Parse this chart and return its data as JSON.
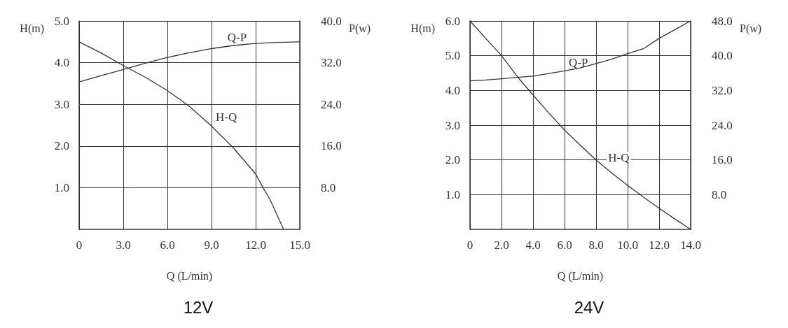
{
  "chart_data": [
    {
      "type": "line",
      "title": "12V",
      "xlabel": "Q (L/min)",
      "ylabel": "H(m)",
      "y2label": "P(w)",
      "xlim": [
        0,
        15
      ],
      "xticks": [
        0,
        {
          "value": 3,
          "label": "3.0"
        },
        {
          "value": 6,
          "label": "6.0"
        },
        {
          "value": 9,
          "label": "9.0"
        },
        {
          "value": 12,
          "label": "12.0"
        },
        {
          "value": 15,
          "label": "15.0"
        }
      ],
      "ylim": [
        0,
        5
      ],
      "yticks": [
        {
          "value": 1,
          "label": "1.0"
        },
        {
          "value": 2,
          "label": "2.0"
        },
        {
          "value": 3,
          "label": "3.0"
        },
        {
          "value": 4,
          "label": "4.0"
        },
        {
          "value": 5,
          "label": "5.0"
        }
      ],
      "y2lim": [
        0,
        40
      ],
      "y2ticks": [
        {
          "value": 8,
          "label": "8.0"
        },
        {
          "value": 16,
          "label": "16.0"
        },
        {
          "value": 24,
          "label": "24.0"
        },
        {
          "value": 32,
          "label": "32.0"
        },
        {
          "value": 40,
          "label": "40.0"
        }
      ],
      "grid": true,
      "marker": "none",
      "line_style": "solid",
      "series": [
        {
          "color": "#333333",
          "x": [
            0,
            1.5,
            3,
            4.5,
            6,
            7.5,
            9,
            10.5,
            12,
            12.5,
            13,
            13.9
          ],
          "values": [
            4.5,
            4.23,
            3.93,
            3.65,
            3.33,
            2.95,
            2.48,
            1.95,
            1.33,
            1.0,
            0.7,
            0
          ]
        },
        {
          "color": "#333333",
          "axis": "y2",
          "x": [
            0,
            1.5,
            3,
            4.5,
            6,
            7.5,
            9,
            10.5,
            12,
            13.5,
            15
          ],
          "values": [
            28.3,
            29.5,
            30.7,
            31.9,
            33.0,
            33.9,
            34.7,
            35.3,
            35.7,
            35.9,
            36.0
          ]
        }
      ],
      "annotations": [
        {
          "text": "Q-P",
          "x": 9.8,
          "y": 4.39
        },
        {
          "text": "H-Q",
          "x": 9,
          "y": 2.48
        }
      ]
    },
    {
      "type": "line",
      "title": "24V",
      "xlabel": "Q (L/min)",
      "ylabel": "H(m)",
      "y2label": "P(w)",
      "xlim": [
        0,
        14
      ],
      "xticks": [
        0,
        {
          "value": 2,
          "label": "2.0"
        },
        {
          "value": 4,
          "label": "4.0"
        },
        {
          "value": 6,
          "label": "6.0"
        },
        {
          "value": 8,
          "label": "8.0"
        },
        {
          "value": 10,
          "label": "10.0"
        },
        {
          "value": 12,
          "label": "12.0"
        },
        {
          "value": 14,
          "label": "14.0"
        }
      ],
      "ylim": [
        0,
        6
      ],
      "yticks": [
        {
          "value": 1,
          "label": "1.0"
        },
        {
          "value": 2,
          "label": "2.0"
        },
        {
          "value": 3,
          "label": "3.0"
        },
        {
          "value": 4,
          "label": "4.0"
        },
        {
          "value": 5,
          "label": "5.0"
        },
        {
          "value": 6,
          "label": "6.0"
        }
      ],
      "y2lim": [
        0,
        48
      ],
      "y2ticks": [
        {
          "value": 8,
          "label": "8.0"
        },
        {
          "value": 16,
          "label": "16.0"
        },
        {
          "value": 24,
          "label": "24.0"
        },
        {
          "value": 32,
          "label": "32.0"
        },
        {
          "value": 40,
          "label": "40.0"
        },
        {
          "value": 48,
          "label": "48.0"
        }
      ],
      "grid": true,
      "marker": "none",
      "line_style": "solid",
      "series": [
        {
          "color": "#333333",
          "x": [
            0,
            1,
            2,
            3,
            4,
            5,
            6,
            7,
            8,
            9,
            10,
            11,
            12,
            13,
            14
          ],
          "values": [
            6.0,
            5.5,
            5.0,
            4.4,
            3.87,
            3.35,
            2.86,
            2.42,
            2.0,
            1.62,
            1.27,
            0.93,
            0.61,
            0.3,
            0
          ]
        },
        {
          "color": "#333333",
          "axis": "y2",
          "x": [
            0,
            1,
            2,
            3,
            4,
            5,
            6,
            7,
            8,
            9,
            10,
            11,
            12,
            13,
            14
          ],
          "values": [
            34.2,
            34.4,
            34.7,
            35.0,
            35.3,
            35.9,
            36.5,
            37.2,
            38.2,
            39.2,
            40.5,
            41.6,
            44.0,
            46.0,
            48.0
          ]
        }
      ],
      "annotations": [
        {
          "text": "Q-P",
          "x": 6,
          "y": 4.56
        },
        {
          "text": "H-Q",
          "x": 8.5,
          "y": 1.81
        }
      ]
    }
  ]
}
